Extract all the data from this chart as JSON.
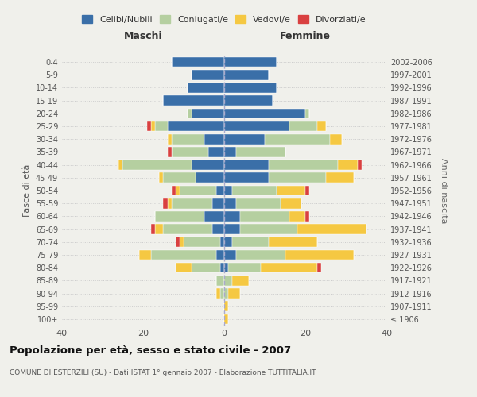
{
  "age_groups": [
    "100+",
    "95-99",
    "90-94",
    "85-89",
    "80-84",
    "75-79",
    "70-74",
    "65-69",
    "60-64",
    "55-59",
    "50-54",
    "45-49",
    "40-44",
    "35-39",
    "30-34",
    "25-29",
    "20-24",
    "15-19",
    "10-14",
    "5-9",
    "0-4"
  ],
  "birth_years": [
    "≤ 1906",
    "1907-1911",
    "1912-1916",
    "1917-1921",
    "1922-1926",
    "1927-1931",
    "1932-1936",
    "1937-1941",
    "1942-1946",
    "1947-1951",
    "1952-1956",
    "1957-1961",
    "1962-1966",
    "1967-1971",
    "1972-1976",
    "1977-1981",
    "1982-1986",
    "1987-1991",
    "1992-1996",
    "1997-2001",
    "2002-2006"
  ],
  "male": {
    "celibi": [
      0,
      0,
      0,
      0,
      1,
      2,
      1,
      3,
      5,
      3,
      2,
      7,
      8,
      4,
      5,
      14,
      8,
      15,
      9,
      8,
      13
    ],
    "coniugati": [
      0,
      0,
      1,
      2,
      7,
      16,
      9,
      12,
      12,
      10,
      9,
      8,
      17,
      9,
      8,
      3,
      1,
      0,
      0,
      0,
      0
    ],
    "vedovi": [
      0,
      0,
      1,
      0,
      4,
      3,
      1,
      2,
      0,
      1,
      1,
      1,
      1,
      0,
      1,
      1,
      0,
      0,
      0,
      0,
      0
    ],
    "divorziati": [
      0,
      0,
      0,
      0,
      0,
      0,
      1,
      1,
      0,
      1,
      1,
      0,
      0,
      1,
      0,
      1,
      0,
      0,
      0,
      0,
      0
    ]
  },
  "female": {
    "nubili": [
      0,
      0,
      0,
      0,
      1,
      3,
      2,
      4,
      4,
      3,
      2,
      11,
      11,
      3,
      10,
      16,
      20,
      12,
      13,
      11,
      13
    ],
    "coniugate": [
      0,
      0,
      1,
      2,
      8,
      12,
      9,
      14,
      12,
      11,
      11,
      14,
      17,
      12,
      16,
      7,
      1,
      0,
      0,
      0,
      0
    ],
    "vedove": [
      1,
      1,
      3,
      4,
      14,
      17,
      12,
      17,
      4,
      5,
      7,
      7,
      5,
      0,
      3,
      2,
      0,
      0,
      0,
      0,
      0
    ],
    "divorziate": [
      0,
      0,
      0,
      0,
      1,
      0,
      0,
      0,
      1,
      0,
      1,
      0,
      1,
      0,
      0,
      0,
      0,
      0,
      0,
      0,
      0
    ]
  },
  "colors": {
    "celibi_nubili": "#3a6fa8",
    "coniugati": "#b5cfa0",
    "vedovi": "#f5c842",
    "divorziati": "#d94040"
  },
  "xlim": 40,
  "title": "Popolazione per età, sesso e stato civile - 2007",
  "subtitle": "COMUNE DI ESTERZILI (SU) - Dati ISTAT 1° gennaio 2007 - Elaborazione TUTTITALIA.IT",
  "ylabel_left": "Fasce di età",
  "ylabel_right": "Anni di nascita",
  "xlabel_left": "Maschi",
  "xlabel_right": "Femmine",
  "legend_labels": [
    "Celibi/Nubili",
    "Coniugati/e",
    "Vedovi/e",
    "Divorziati/e"
  ],
  "background_color": "#f0f0eb",
  "grid_color": "#cccccc"
}
